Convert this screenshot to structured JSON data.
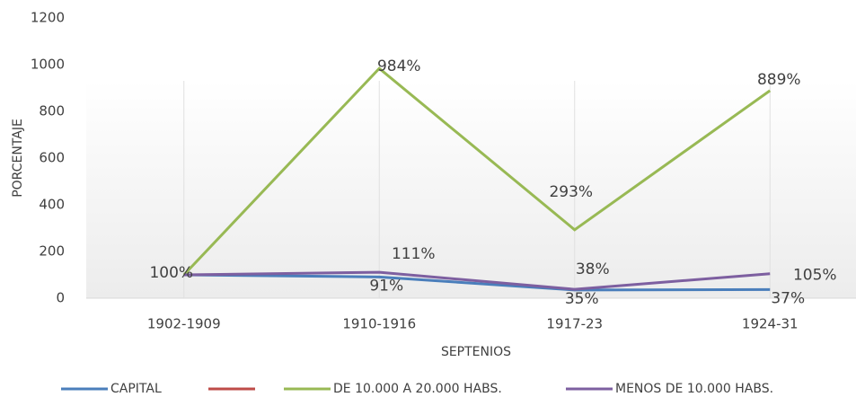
{
  "chart_data": {
    "type": "line",
    "categories": [
      "1902-1909",
      "1910-1916",
      "1917-23",
      "1924-31"
    ],
    "series": [
      {
        "name": "CAPITAL",
        "color": "#4a7ebb",
        "values": [
          100,
          91,
          35,
          37
        ],
        "value_labels": [
          null,
          "91%",
          "35%",
          "37%"
        ]
      },
      {
        "name": null,
        "color": "#be4b48",
        "values": [
          null,
          null,
          null,
          null
        ]
      },
      {
        "name": "DE 10.000 A 20.000 HABS.",
        "color": "#98b954",
        "values": [
          100,
          984,
          293,
          889
        ],
        "value_labels": [
          null,
          "984%",
          "293%",
          "889%"
        ]
      },
      {
        "name": "MENOS DE 10.000 HABS.",
        "color": "#7d5fa0",
        "values": [
          100,
          111,
          38,
          105
        ],
        "value_labels": [
          "100%",
          "111%",
          "38%",
          "105%"
        ]
      }
    ],
    "ylim": [
      0,
      1200
    ],
    "yticks": [
      0,
      200,
      400,
      600,
      800,
      1000,
      1200
    ],
    "y_label": "PORCENTAJE",
    "x_label": "SEPTENIOS",
    "grid": true,
    "legend": "bottom"
  }
}
